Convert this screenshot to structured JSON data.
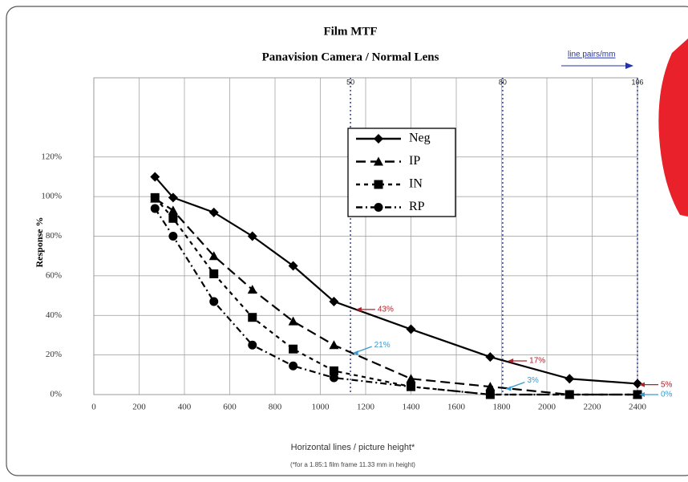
{
  "chart_data": {
    "type": "line",
    "title": "Film MTF",
    "subtitle": "Panavision Camera / Normal Lens",
    "x_label": "Horizontal lines / picture height*",
    "y_label": "Response %",
    "footnote": "(*for a 1.85:1 film frame 11.33 mm in height)",
    "secondary_axis_label": "line pairs/mm",
    "x": [
      270,
      350,
      530,
      700,
      880,
      1060,
      1400,
      1750,
      2100,
      2400
    ],
    "series": [
      {
        "name": "Neg",
        "color": "#000000",
        "marker": "diamond",
        "dash": "solid",
        "values": [
          110,
          99.5,
          92,
          80,
          65,
          47,
          33,
          19,
          8,
          5.5
        ]
      },
      {
        "name": "IP",
        "color": "#000000",
        "marker": "triangle",
        "dash": "long",
        "values": [
          99,
          93,
          70,
          53,
          37,
          25,
          8,
          4,
          0,
          0
        ]
      },
      {
        "name": "IN",
        "color": "#000000",
        "marker": "square",
        "dash": "short",
        "values": [
          99.5,
          89,
          61,
          39,
          23,
          12,
          4,
          0,
          0,
          0
        ]
      },
      {
        "name": "RP",
        "color": "#000000",
        "marker": "circle",
        "dash": "dashdot",
        "values": [
          94,
          80,
          47,
          25,
          14.5,
          8.5,
          4,
          0,
          0,
          0
        ]
      }
    ],
    "xlim": [
      0,
      2400
    ],
    "ylim": [
      0,
      160
    ],
    "xticks": [
      0,
      200,
      400,
      600,
      800,
      1000,
      1200,
      1400,
      1600,
      1800,
      2000,
      2200,
      2400
    ],
    "yticks": [
      {
        "value": 0,
        "label": "0%"
      },
      {
        "value": 20,
        "label": "20%"
      },
      {
        "value": 40,
        "label": "40%"
      },
      {
        "value": 60,
        "label": "60%"
      },
      {
        "value": 80,
        "label": "80%"
      },
      {
        "value": 100,
        "label": "100%"
      },
      {
        "value": 120,
        "label": "120%"
      }
    ],
    "grid": true,
    "legend_position": "upper center",
    "reference_lines": [
      {
        "x": 1133,
        "label": "50"
      },
      {
        "x": 1805,
        "label": "80"
      },
      {
        "x": 2400,
        "label": "106"
      }
    ],
    "annotations": [
      {
        "x": 1150,
        "y": 43,
        "label": "43%",
        "color": "#b0202a"
      },
      {
        "x": 1135,
        "y": 21,
        "label": "21%",
        "color": "#3a9ad0"
      },
      {
        "x": 1820,
        "y": 17,
        "label": "17%",
        "color": "#b0202a"
      },
      {
        "x": 1810,
        "y": 3,
        "label": "3%",
        "color": "#3a9ad0"
      },
      {
        "x": 2400,
        "y": 5,
        "label": "5%",
        "color": "#b0202a"
      },
      {
        "x": 2400,
        "y": 0,
        "label": "0%",
        "color": "#3a9ad0"
      }
    ]
  }
}
